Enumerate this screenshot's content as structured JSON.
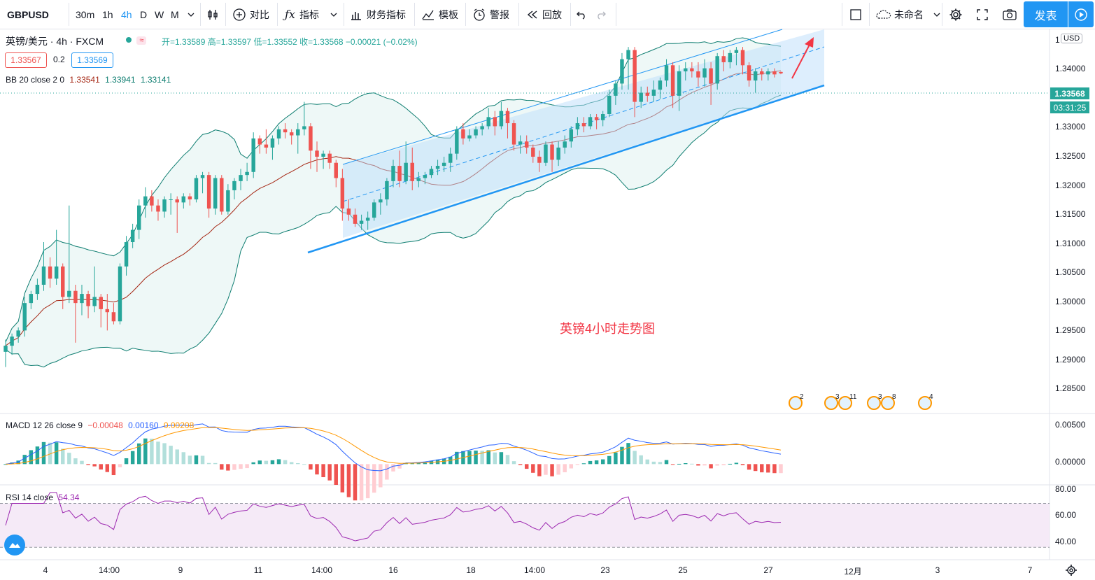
{
  "toolbar": {
    "symbol": "GBPUSD",
    "intervals": [
      "30m",
      "1h",
      "4h",
      "D",
      "W",
      "M"
    ],
    "active_interval": "4h",
    "compare_label": "对比",
    "indicators_label": "指标",
    "financials_label": "财务指标",
    "templates_label": "模板",
    "alert_label": "警报",
    "replay_label": "回放",
    "layout_name": "未命名",
    "publish_label": "发表"
  },
  "legend": {
    "title": "英镑/美元 · 4h · FXCM",
    "ohlc": "开=1.33589 高=1.33597 低=1.33552 收=1.33568 −0.00021 (−0.02%)",
    "bid": "1.33567",
    "spread": "0.2",
    "ask": "1.33569",
    "bb_label": "BB 20 close 2 0",
    "bb_values": [
      "1.33541",
      "1.33941",
      "1.33141"
    ],
    "macd_label": "MACD 12 26 close 9",
    "macd_values": [
      "−0.00048",
      "0.00160",
      "0.00208"
    ],
    "rsi_label": "RSI 14 close",
    "rsi_value": "54.34"
  },
  "annotation_text": "英镑4小时走势图",
  "price_axis": {
    "currency": "USD",
    "ticks": [
      "1.34000",
      "1.33500",
      "1.33000",
      "1.32500",
      "1.32000",
      "1.31500",
      "1.31000",
      "1.30500",
      "1.30000",
      "1.29500",
      "1.29000",
      "1.28500"
    ],
    "top_partial": "1",
    "last_price": "1.33568",
    "countdown": "03:31:25",
    "macd_ticks": [
      "0.00500",
      "0.00000"
    ],
    "rsi_ticks": [
      "80.00",
      "60.00",
      "40.00"
    ]
  },
  "time_axis": [
    "4",
    "14:00",
    "9",
    "11",
    "14:00",
    "16",
    "18",
    "14:00",
    "23",
    "25",
    "27",
    "12月",
    "3",
    "7"
  ],
  "events": [
    "2",
    "3",
    "11",
    "3",
    "8",
    "4"
  ],
  "colors": {
    "up": "#26a69a",
    "down": "#ef5350",
    "accent": "#2196f3",
    "bb_fill": "#e0f2f1",
    "channel_fill": "#bbdefb",
    "rsi": "#9c27b0"
  },
  "chart_data": {
    "type": "candlestick",
    "symbol": "GBPUSD",
    "interval": "4h",
    "y_range": [
      1.28,
      1.343
    ],
    "candles": [
      [
        1.29,
        1.292,
        1.2875,
        1.291
      ],
      [
        1.291,
        1.293,
        1.2895,
        1.2925
      ],
      [
        1.2925,
        1.294,
        1.2915,
        1.2935
      ],
      [
        1.2935,
        1.299,
        1.2925,
        1.298
      ],
      [
        1.298,
        1.3,
        1.297,
        1.2995
      ],
      [
        1.2995,
        1.302,
        1.2985,
        1.301
      ],
      [
        1.301,
        1.308,
        1.3,
        1.304
      ],
      [
        1.304,
        1.3055,
        1.3005,
        1.302
      ],
      [
        1.302,
        1.31,
        1.301,
        1.304
      ],
      [
        1.304,
        1.3045,
        1.297,
        1.299
      ],
      [
        1.299,
        1.314,
        1.298,
        1.3
      ],
      [
        1.3,
        1.301,
        1.2915,
        1.298
      ],
      [
        1.298,
        1.301,
        1.296,
        1.2995
      ],
      [
        1.2995,
        1.3,
        1.2955,
        1.2975
      ],
      [
        1.2975,
        1.304,
        1.2965,
        1.299
      ],
      [
        1.299,
        1.2995,
        1.294,
        1.297
      ],
      [
        1.297,
        1.2995,
        1.2935,
        1.2965
      ],
      [
        1.2965,
        1.298,
        1.2945,
        1.295
      ],
      [
        1.295,
        1.3045,
        1.2945,
        1.304
      ],
      [
        1.304,
        1.309,
        1.3025,
        1.308
      ],
      [
        1.308,
        1.311,
        1.307,
        1.31
      ],
      [
        1.31,
        1.315,
        1.3085,
        1.314
      ],
      [
        1.314,
        1.317,
        1.312,
        1.3155
      ],
      [
        1.3155,
        1.3165,
        1.313,
        1.314
      ],
      [
        1.314,
        1.315,
        1.3115,
        1.313
      ],
      [
        1.313,
        1.3155,
        1.312,
        1.315
      ],
      [
        1.315,
        1.316,
        1.3125,
        1.315
      ],
      [
        1.315,
        1.3155,
        1.3095,
        1.3145
      ],
      [
        1.3145,
        1.316,
        1.3135,
        1.3155
      ],
      [
        1.3155,
        1.316,
        1.314,
        1.315
      ],
      [
        1.315,
        1.319,
        1.3145,
        1.3185
      ],
      [
        1.3185,
        1.3195,
        1.316,
        1.319
      ],
      [
        1.319,
        1.3195,
        1.312,
        1.3135
      ],
      [
        1.3135,
        1.319,
        1.3125,
        1.3185
      ],
      [
        1.3185,
        1.319,
        1.3125,
        1.313
      ],
      [
        1.313,
        1.3175,
        1.3125,
        1.3165
      ],
      [
        1.3165,
        1.3185,
        1.315,
        1.318
      ],
      [
        1.318,
        1.32,
        1.3165,
        1.319
      ],
      [
        1.319,
        1.321,
        1.318,
        1.3195
      ],
      [
        1.3195,
        1.326,
        1.3185,
        1.325
      ],
      [
        1.325,
        1.3255,
        1.3225,
        1.324
      ],
      [
        1.324,
        1.3265,
        1.3225,
        1.3235
      ],
      [
        1.3235,
        1.3255,
        1.3215,
        1.325
      ],
      [
        1.325,
        1.327,
        1.324,
        1.3265
      ],
      [
        1.3265,
        1.3275,
        1.325,
        1.326
      ],
      [
        1.326,
        1.3265,
        1.324,
        1.3255
      ],
      [
        1.3255,
        1.3275,
        1.3225,
        1.3265
      ],
      [
        1.3265,
        1.331,
        1.3255,
        1.327
      ],
      [
        1.327,
        1.3275,
        1.32,
        1.323
      ],
      [
        1.323,
        1.3245,
        1.3195,
        1.322
      ],
      [
        1.322,
        1.323,
        1.32,
        1.3225
      ],
      [
        1.3225,
        1.323,
        1.32,
        1.321
      ],
      [
        1.321,
        1.3215,
        1.317,
        1.3185
      ],
      [
        1.3185,
        1.32,
        1.3115,
        1.3135
      ],
      [
        1.3135,
        1.315,
        1.3115,
        1.3125
      ],
      [
        1.3125,
        1.3135,
        1.3105,
        1.311
      ],
      [
        1.311,
        1.3125,
        1.31,
        1.3115
      ],
      [
        1.3115,
        1.313,
        1.31,
        1.312
      ],
      [
        1.312,
        1.315,
        1.3115,
        1.3145
      ],
      [
        1.3145,
        1.316,
        1.3125,
        1.315
      ],
      [
        1.315,
        1.3185,
        1.314,
        1.318
      ],
      [
        1.318,
        1.3215,
        1.317,
        1.3205
      ],
      [
        1.3205,
        1.323,
        1.317,
        1.318
      ],
      [
        1.318,
        1.3245,
        1.3175,
        1.321
      ],
      [
        1.321,
        1.3235,
        1.3165,
        1.318
      ],
      [
        1.318,
        1.3195,
        1.317,
        1.3185
      ],
      [
        1.3185,
        1.3195,
        1.3175,
        1.319
      ],
      [
        1.319,
        1.3205,
        1.3185,
        1.32
      ],
      [
        1.32,
        1.3215,
        1.319,
        1.3205
      ],
      [
        1.3205,
        1.322,
        1.3195,
        1.321
      ],
      [
        1.321,
        1.3235,
        1.3195,
        1.3225
      ],
      [
        1.3225,
        1.327,
        1.3215,
        1.3265
      ],
      [
        1.3265,
        1.3275,
        1.324,
        1.325
      ],
      [
        1.325,
        1.3265,
        1.3245,
        1.3255
      ],
      [
        1.3255,
        1.327,
        1.325,
        1.3265
      ],
      [
        1.3265,
        1.3275,
        1.3255,
        1.327
      ],
      [
        1.327,
        1.33,
        1.3265,
        1.3285
      ],
      [
        1.3285,
        1.3295,
        1.3255,
        1.327
      ],
      [
        1.327,
        1.331,
        1.3265,
        1.3295
      ],
      [
        1.3295,
        1.33,
        1.325,
        1.3275
      ],
      [
        1.3275,
        1.328,
        1.323,
        1.324
      ],
      [
        1.324,
        1.3255,
        1.3225,
        1.3245
      ],
      [
        1.3245,
        1.3255,
        1.3225,
        1.3235
      ],
      [
        1.3235,
        1.324,
        1.321,
        1.322
      ],
      [
        1.322,
        1.323,
        1.3195,
        1.321
      ],
      [
        1.321,
        1.3245,
        1.3205,
        1.324
      ],
      [
        1.324,
        1.3245,
        1.3195,
        1.3215
      ],
      [
        1.3215,
        1.3245,
        1.3205,
        1.3235
      ],
      [
        1.3235,
        1.3255,
        1.3225,
        1.3245
      ],
      [
        1.3245,
        1.327,
        1.3235,
        1.3265
      ],
      [
        1.3265,
        1.3285,
        1.3255,
        1.3275
      ],
      [
        1.3275,
        1.3285,
        1.326,
        1.327
      ],
      [
        1.327,
        1.329,
        1.3265,
        1.3285
      ],
      [
        1.3285,
        1.329,
        1.3265,
        1.328
      ],
      [
        1.328,
        1.3295,
        1.327,
        1.329
      ],
      [
        1.329,
        1.333,
        1.3285,
        1.332
      ],
      [
        1.332,
        1.3345,
        1.3305,
        1.334
      ],
      [
        1.334,
        1.339,
        1.333,
        1.338
      ],
      [
        1.338,
        1.34,
        1.333,
        1.3395
      ],
      [
        1.3395,
        1.34,
        1.3285,
        1.331
      ],
      [
        1.331,
        1.3335,
        1.33,
        1.3325
      ],
      [
        1.3325,
        1.3335,
        1.331,
        1.332
      ],
      [
        1.332,
        1.3345,
        1.331,
        1.333
      ],
      [
        1.333,
        1.335,
        1.3315,
        1.3345
      ],
      [
        1.3345,
        1.338,
        1.3335,
        1.337
      ],
      [
        1.337,
        1.3375,
        1.33,
        1.332
      ],
      [
        1.332,
        1.337,
        1.3295,
        1.336
      ],
      [
        1.336,
        1.3375,
        1.3345,
        1.3365
      ],
      [
        1.3365,
        1.3375,
        1.335,
        1.336
      ],
      [
        1.336,
        1.3375,
        1.3335,
        1.335
      ],
      [
        1.335,
        1.338,
        1.3335,
        1.3365
      ],
      [
        1.3365,
        1.3375,
        1.3305,
        1.334
      ],
      [
        1.334,
        1.339,
        1.333,
        1.3385
      ],
      [
        1.3385,
        1.3395,
        1.336,
        1.3375
      ],
      [
        1.3375,
        1.3395,
        1.3365,
        1.339
      ],
      [
        1.339,
        1.34,
        1.337,
        1.3395
      ],
      [
        1.3395,
        1.34,
        1.3355,
        1.337
      ],
      [
        1.337,
        1.3375,
        1.3335,
        1.3345
      ],
      [
        1.3345,
        1.3365,
        1.3325,
        1.336
      ],
      [
        1.336,
        1.3365,
        1.3345,
        1.3355
      ],
      [
        1.3355,
        1.3365,
        1.3345,
        1.336
      ],
      [
        1.336,
        1.3365,
        1.335,
        1.3355
      ],
      [
        1.3359,
        1.33597,
        1.33552,
        1.33568
      ]
    ],
    "macd": {
      "macd": -0.00048,
      "signal": 0.0016,
      "histogram": 0.00208,
      "y_range": [
        -0.0025,
        0.0065
      ]
    },
    "rsi": {
      "value": 54.34,
      "upper_band": 70,
      "lower_band": 30,
      "y_range": [
        20,
        85
      ]
    }
  }
}
